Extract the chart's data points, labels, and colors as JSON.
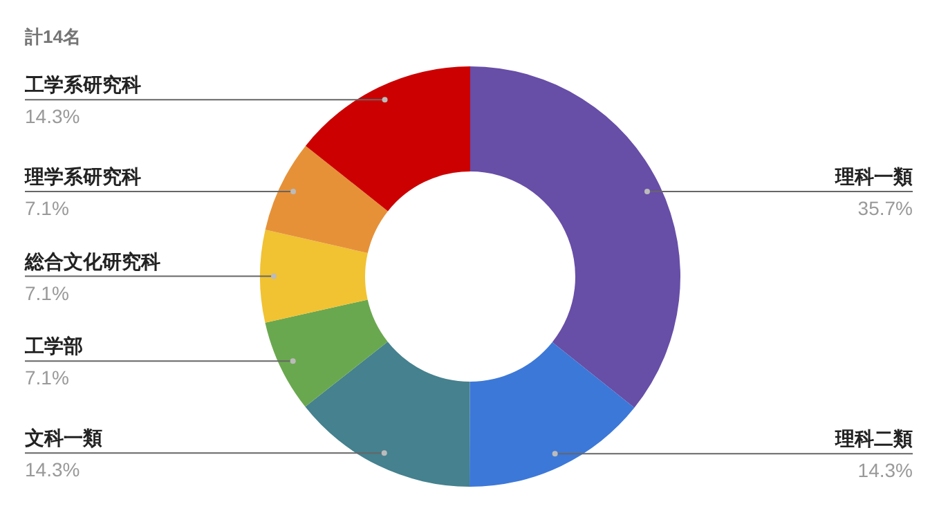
{
  "chart_data": {
    "type": "donut",
    "title": "計14名",
    "categories": [
      "理科一類",
      "理科二類",
      "文科一類",
      "工学部",
      "総合文化研究科",
      "理学系研究科",
      "工学系研究科"
    ],
    "values": [
      35.7,
      14.3,
      14.3,
      7.1,
      7.1,
      7.1,
      14.3
    ],
    "colors": [
      "#674ea7",
      "#3c78d8",
      "#45818e",
      "#6aa84f",
      "#f1c232",
      "#e69138",
      "#cc0000"
    ],
    "value_labels": [
      "35.7%",
      "14.3%",
      "14.3%",
      "7.1%",
      "7.1%",
      "7.1%",
      "14.3%"
    ]
  }
}
